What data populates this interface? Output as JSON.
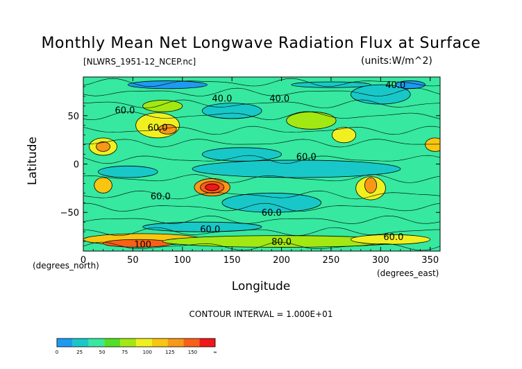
{
  "title": "Monthly Mean Net Longwave Radiation Flux at Surface",
  "file_label": "[NLWRS_1951-12_NCEP.nc]",
  "units_label": "(units:W/m^2)",
  "contour_interval_label": "CONTOUR INTERVAL = 1.000E+01",
  "chart_data": {
    "type": "heatmap",
    "title": "Monthly Mean Net Longwave Radiation Flux at Surface",
    "xlabel": "Longitude",
    "ylabel": "Latitude",
    "x_unit_label": "(degrees_east)",
    "y_unit_label": "(degrees_north)",
    "xlim": [
      0,
      360
    ],
    "ylim": [
      -90,
      90
    ],
    "xticks": [
      0,
      50,
      100,
      150,
      200,
      250,
      300,
      350
    ],
    "yticks": [
      -50,
      0,
      50
    ],
    "contour_interval": 10,
    "contour_labels": [
      {
        "text": "40.0",
        "lon": 140,
        "lat": 68
      },
      {
        "text": "40.0",
        "lon": 198,
        "lat": 68
      },
      {
        "text": "60.0",
        "lon": 42,
        "lat": 56
      },
      {
        "text": "60.0",
        "lon": 75,
        "lat": 38
      },
      {
        "text": "60.0",
        "lon": 225,
        "lat": 8
      },
      {
        "text": "60.0",
        "lon": 78,
        "lat": -33
      },
      {
        "text": "60.0",
        "lon": 190,
        "lat": -50
      },
      {
        "text": "60.0",
        "lon": 128,
        "lat": -67
      },
      {
        "text": "80.0",
        "lon": 200,
        "lat": -80
      },
      {
        "text": "100",
        "lon": 60,
        "lat": -83
      },
      {
        "text": "60.0",
        "lon": 313,
        "lat": -75
      },
      {
        "text": "40.0",
        "lon": 315,
        "lat": 82
      }
    ],
    "colorbar": {
      "labels": [
        "0",
        "25",
        "50",
        "75",
        "100",
        "125",
        "150",
        "∞"
      ],
      "colors": [
        "#1e9bf0",
        "#18c8c8",
        "#36e8a0",
        "#52e024",
        "#a2e812",
        "#f0f020",
        "#f8c610",
        "#f89818",
        "#f86018",
        "#f01818"
      ]
    },
    "regions": [
      {
        "lon": 130,
        "lat": -24,
        "rx": 18,
        "ry": 9,
        "level": 7
      },
      {
        "lon": 130,
        "lat": -24,
        "rx": 12,
        "ry": 6,
        "level": 8
      },
      {
        "lon": 130,
        "lat": -24,
        "rx": 7,
        "ry": 3.5,
        "level": 9
      },
      {
        "lon": 20,
        "lat": 18,
        "rx": 14,
        "ry": 9,
        "level": 5
      },
      {
        "lon": 20,
        "lat": 18,
        "rx": 7,
        "ry": 5,
        "level": 7
      },
      {
        "lon": 75,
        "lat": 40,
        "rx": 22,
        "ry": 13,
        "level": 5
      },
      {
        "lon": 85,
        "lat": 36,
        "rx": 9,
        "ry": 5,
        "level": 7
      },
      {
        "lon": 355,
        "lat": 20,
        "rx": 10,
        "ry": 7,
        "level": 6
      },
      {
        "lon": 263,
        "lat": 30,
        "rx": 12,
        "ry": 8,
        "level": 5
      },
      {
        "lon": 230,
        "lat": 45,
        "rx": 25,
        "ry": 9,
        "level": 4
      },
      {
        "lon": 20,
        "lat": -22,
        "rx": 9,
        "ry": 8,
        "level": 6
      },
      {
        "lon": 290,
        "lat": -25,
        "rx": 15,
        "ry": 12,
        "level": 5
      },
      {
        "lon": 290,
        "lat": -22,
        "rx": 6,
        "ry": 8,
        "level": 7
      },
      {
        "lon": 60,
        "lat": -78,
        "rx": 60,
        "ry": 6,
        "level": 6
      },
      {
        "lon": 55,
        "lat": -82,
        "rx": 35,
        "ry": 4,
        "level": 8
      },
      {
        "lon": 200,
        "lat": -80,
        "rx": 120,
        "ry": 6,
        "level": 4
      },
      {
        "lon": 310,
        "lat": -78,
        "rx": 40,
        "ry": 5,
        "level": 5
      },
      {
        "lon": 215,
        "lat": -5,
        "rx": 105,
        "ry": 9,
        "level": 1
      },
      {
        "lon": 160,
        "lat": 10,
        "rx": 40,
        "ry": 7,
        "level": 1
      },
      {
        "lon": 45,
        "lat": -8,
        "rx": 30,
        "ry": 6,
        "level": 1
      },
      {
        "lon": 85,
        "lat": 82,
        "rx": 40,
        "ry": 4,
        "level": 0
      },
      {
        "lon": 250,
        "lat": 82,
        "rx": 40,
        "ry": 3,
        "level": 1
      },
      {
        "lon": 150,
        "lat": 55,
        "rx": 30,
        "ry": 8,
        "level": 1
      },
      {
        "lon": 300,
        "lat": 72,
        "rx": 30,
        "ry": 10,
        "level": 1
      },
      {
        "lon": 330,
        "lat": 82,
        "rx": 15,
        "ry": 4,
        "level": 0
      },
      {
        "lon": 190,
        "lat": -40,
        "rx": 50,
        "ry": 10,
        "level": 1
      },
      {
        "lon": 120,
        "lat": -65,
        "rx": 60,
        "ry": 5,
        "level": 1
      },
      {
        "lon": 80,
        "lat": 60,
        "rx": 20,
        "ry": 6,
        "level": 4
      }
    ]
  }
}
